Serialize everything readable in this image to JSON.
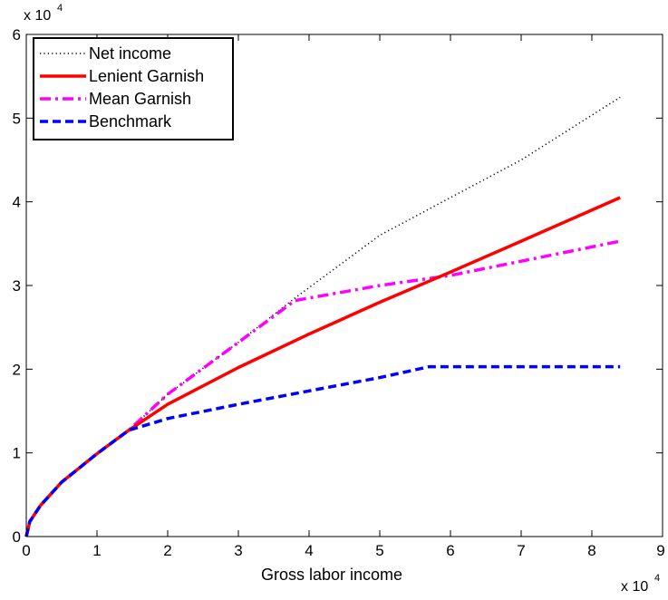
{
  "chart_data": {
    "type": "line",
    "title": "",
    "xlabel": "Gross labor income",
    "ylabel": "",
    "x_multiplier_label": {
      "base": "x 10",
      "exponent": "4"
    },
    "y_multiplier_label": {
      "base": "x 10",
      "exponent": "4"
    },
    "xlim": [
      0,
      90000
    ],
    "ylim": [
      0,
      60000
    ],
    "x_ticks": [
      0,
      10000,
      20000,
      30000,
      40000,
      50000,
      60000,
      70000,
      80000,
      90000
    ],
    "x_tick_labels": [
      "0",
      "1",
      "2",
      "3",
      "4",
      "5",
      "6",
      "7",
      "8",
      "9"
    ],
    "y_ticks": [
      0,
      10000,
      20000,
      30000,
      40000,
      50000,
      60000
    ],
    "y_tick_labels": [
      "0",
      "1",
      "2",
      "3",
      "4",
      "5",
      "6"
    ],
    "grid": false,
    "legend_position": "top-left",
    "series": [
      {
        "name": "Net income",
        "color": "#000000",
        "style": "dotted",
        "x": [
          0,
          500,
          2000,
          5000,
          10000,
          14500,
          20000,
          30000,
          38000,
          50000,
          60000,
          70000,
          84000
        ],
        "y": [
          0,
          1800,
          3700,
          6500,
          9900,
          12700,
          17000,
          23200,
          28500,
          36000,
          40500,
          45000,
          52500
        ]
      },
      {
        "name": "Lenient Garnish",
        "color": "#ff0000",
        "style": "solid",
        "x": [
          0,
          500,
          2000,
          5000,
          10000,
          14500,
          20000,
          30000,
          40000,
          50000,
          60000,
          70000,
          84000
        ],
        "y": [
          0,
          1800,
          3700,
          6500,
          9900,
          12700,
          15800,
          20200,
          24200,
          28000,
          31600,
          35300,
          40500
        ]
      },
      {
        "name": "Mean Garnish",
        "color": "#ff00ff",
        "style": "dashdot",
        "x": [
          0,
          500,
          2000,
          5000,
          10000,
          14500,
          20000,
          30000,
          38000,
          50000,
          60000,
          70000,
          84000
        ],
        "y": [
          0,
          1800,
          3700,
          6500,
          9900,
          12700,
          17000,
          23200,
          28200,
          30000,
          31200,
          32900,
          35300
        ]
      },
      {
        "name": "Benchmark",
        "color": "#0000ff",
        "style": "dashed",
        "x": [
          0,
          500,
          2000,
          5000,
          10000,
          14500,
          20000,
          30000,
          40000,
          50000,
          57000,
          70000,
          84000
        ],
        "y": [
          0,
          1800,
          3700,
          6500,
          9900,
          12700,
          14100,
          15800,
          17400,
          19000,
          20300,
          20300,
          20300
        ]
      }
    ]
  }
}
